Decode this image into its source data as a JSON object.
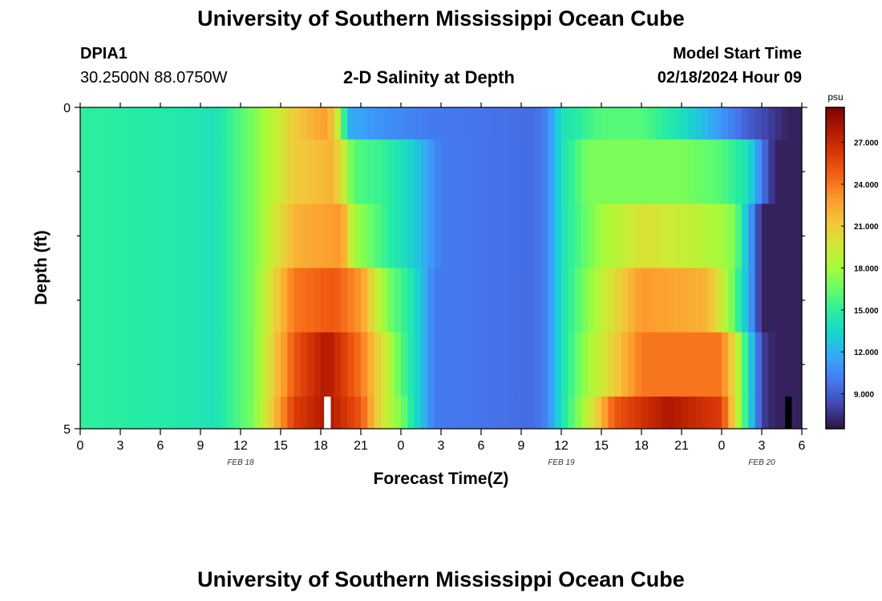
{
  "header": {
    "title": "University of Southern Mississippi Ocean Cube",
    "title_repeat": "University of Southern Mississippi Ocean Cube",
    "station": "DPIA1",
    "coords": "30.2500N  88.0750W",
    "subtitle": "2-D Salinity at Depth",
    "model_start_label": "Model Start Time",
    "model_start_value": "02/18/2024 Hour 09"
  },
  "chart_data": {
    "type": "heatmap",
    "title": "2-D Salinity at Depth",
    "xlabel": "Forecast Time(Z)",
    "ylabel": "Depth (ft)",
    "x_unit": "hours from Feb 18 00Z",
    "x_range": [
      0,
      54
    ],
    "y_range": [
      0,
      5
    ],
    "x_ticks": [
      {
        "h": 0,
        "label": "0"
      },
      {
        "h": 3,
        "label": "3"
      },
      {
        "h": 6,
        "label": "6"
      },
      {
        "h": 9,
        "label": "9"
      },
      {
        "h": 12,
        "label": "12"
      },
      {
        "h": 15,
        "label": "15"
      },
      {
        "h": 18,
        "label": "18"
      },
      {
        "h": 21,
        "label": "21"
      },
      {
        "h": 24,
        "label": "0"
      },
      {
        "h": 27,
        "label": "3"
      },
      {
        "h": 30,
        "label": "6"
      },
      {
        "h": 33,
        "label": "9"
      },
      {
        "h": 36,
        "label": "12"
      },
      {
        "h": 39,
        "label": "15"
      },
      {
        "h": 42,
        "label": "18"
      },
      {
        "h": 45,
        "label": "21"
      },
      {
        "h": 48,
        "label": "0"
      },
      {
        "h": 51,
        "label": "3"
      },
      {
        "h": 54,
        "label": "6"
      }
    ],
    "date_labels": [
      {
        "h": 12,
        "label": "FEB 18"
      },
      {
        "h": 36,
        "label": "FEB 19"
      },
      {
        "h": 51,
        "label": "FEB 20"
      }
    ],
    "y_tick_labels": [
      {
        "v": 0,
        "label": "0"
      },
      {
        "v": 5,
        "label": "5"
      }
    ],
    "y_minor_ticks": [
      1,
      2,
      3,
      4
    ],
    "colorbar": {
      "unit": "psu",
      "min": 6.5,
      "max": 29.5,
      "ticks": [
        {
          "v": 27,
          "label": "27.000"
        },
        {
          "v": 24,
          "label": "24.000"
        },
        {
          "v": 21,
          "label": "21.000"
        },
        {
          "v": 18,
          "label": "18.000"
        },
        {
          "v": 15,
          "label": "15.000"
        },
        {
          "v": 12,
          "label": "12.000"
        },
        {
          "v": 9,
          "label": "9.000"
        }
      ],
      "stops": [
        "#30123b",
        "#4145ab",
        "#4675ed",
        "#39a2fc",
        "#1bcfd4",
        "#24eca6",
        "#61fc6c",
        "#a4fc3b",
        "#d1e834",
        "#f3c63a",
        "#fe9b2d",
        "#f36315",
        "#d93806",
        "#b11901",
        "#7a0402"
      ]
    },
    "layers": [
      {
        "depth_start": 0.0,
        "depth_end": 0.5,
        "keyframes": [
          [
            0,
            15
          ],
          [
            8,
            14.5
          ],
          [
            10,
            14
          ],
          [
            13,
            17
          ],
          [
            16,
            21
          ],
          [
            18.5,
            23
          ],
          [
            19.5,
            18
          ],
          [
            20,
            12
          ],
          [
            22,
            11
          ],
          [
            26,
            10
          ],
          [
            34,
            9.5
          ],
          [
            35,
            10.5
          ],
          [
            36,
            14
          ],
          [
            39,
            16
          ],
          [
            42,
            16
          ],
          [
            45,
            14
          ],
          [
            47,
            12
          ],
          [
            50,
            9
          ],
          [
            53,
            7
          ],
          [
            54,
            7
          ]
        ]
      },
      {
        "depth_start": 0.5,
        "depth_end": 1.5,
        "keyframes": [
          [
            0,
            15
          ],
          [
            8,
            14.5
          ],
          [
            10,
            14
          ],
          [
            13,
            17
          ],
          [
            16,
            21
          ],
          [
            19,
            22
          ],
          [
            20,
            18
          ],
          [
            20.5,
            16
          ],
          [
            23,
            15
          ],
          [
            25,
            13
          ],
          [
            27,
            10
          ],
          [
            34,
            9.5
          ],
          [
            35,
            10.5
          ],
          [
            36,
            14
          ],
          [
            38,
            17
          ],
          [
            45,
            17
          ],
          [
            48,
            16
          ],
          [
            50,
            14
          ],
          [
            51,
            10
          ],
          [
            52,
            7
          ],
          [
            54,
            7
          ]
        ]
      },
      {
        "depth_start": 1.5,
        "depth_end": 2.5,
        "keyframes": [
          [
            0,
            15
          ],
          [
            8,
            14.5
          ],
          [
            10,
            14
          ],
          [
            13,
            17
          ],
          [
            16,
            22
          ],
          [
            19.5,
            23
          ],
          [
            20,
            21
          ],
          [
            20.5,
            18
          ],
          [
            23,
            15
          ],
          [
            25,
            13
          ],
          [
            27,
            10
          ],
          [
            34,
            9.5
          ],
          [
            35,
            10.5
          ],
          [
            36,
            14
          ],
          [
            39,
            18
          ],
          [
            42,
            20
          ],
          [
            46,
            19
          ],
          [
            48,
            18
          ],
          [
            49,
            17
          ],
          [
            50,
            12
          ],
          [
            51,
            7
          ],
          [
            54,
            7
          ]
        ]
      },
      {
        "depth_start": 2.5,
        "depth_end": 3.5,
        "keyframes": [
          [
            0,
            15
          ],
          [
            8,
            14.5
          ],
          [
            10,
            14
          ],
          [
            13,
            17
          ],
          [
            16,
            24
          ],
          [
            19,
            25
          ],
          [
            21,
            23
          ],
          [
            22,
            20
          ],
          [
            23,
            17
          ],
          [
            25,
            14
          ],
          [
            26.5,
            10
          ],
          [
            34,
            9.5
          ],
          [
            35,
            10.5
          ],
          [
            36,
            14
          ],
          [
            39,
            19
          ],
          [
            42,
            23
          ],
          [
            47,
            22
          ],
          [
            48.5,
            18
          ],
          [
            49,
            16
          ],
          [
            50,
            12
          ],
          [
            51,
            7
          ],
          [
            54,
            7
          ]
        ]
      },
      {
        "depth_start": 3.5,
        "depth_end": 4.5,
        "keyframes": [
          [
            0,
            15
          ],
          [
            8,
            14.5
          ],
          [
            10,
            14
          ],
          [
            13,
            17
          ],
          [
            16,
            25
          ],
          [
            18.5,
            28
          ],
          [
            21,
            24
          ],
          [
            23,
            19
          ],
          [
            24,
            16
          ],
          [
            25,
            14
          ],
          [
            26.5,
            10
          ],
          [
            34,
            9.5
          ],
          [
            35,
            10.5
          ],
          [
            36,
            14
          ],
          [
            38,
            18
          ],
          [
            40,
            21
          ],
          [
            42,
            24
          ],
          [
            48,
            24
          ],
          [
            49,
            20
          ],
          [
            50,
            14
          ],
          [
            51,
            8
          ],
          [
            52,
            7
          ],
          [
            54,
            7
          ]
        ]
      },
      {
        "depth_start": 4.5,
        "depth_end": 5.0,
        "keyframes": [
          [
            0,
            15
          ],
          [
            8,
            14.5
          ],
          [
            10,
            14
          ],
          [
            13,
            17
          ],
          [
            16,
            26
          ],
          [
            18.5,
            28
          ],
          [
            21,
            25
          ],
          [
            22.5,
            20
          ],
          [
            24,
            17
          ],
          [
            25,
            14
          ],
          [
            26.5,
            10
          ],
          [
            34,
            9.5
          ],
          [
            35,
            10.5
          ],
          [
            36,
            14
          ],
          [
            38,
            19
          ],
          [
            40,
            25
          ],
          [
            44,
            28
          ],
          [
            48,
            26
          ],
          [
            49,
            20
          ],
          [
            50,
            14
          ],
          [
            51,
            8
          ],
          [
            52,
            7
          ],
          [
            54,
            7
          ]
        ]
      }
    ],
    "missing_cells": [
      {
        "h_start": 18.25,
        "h_end": 18.75,
        "depth_start": 4.5,
        "depth_end": 5.0,
        "color": "#ffffff"
      },
      {
        "h_start": 52.75,
        "h_end": 53.25,
        "depth_start": 4.5,
        "depth_end": 5.0,
        "color": "#000000"
      }
    ],
    "cell_hours": 0.5
  }
}
